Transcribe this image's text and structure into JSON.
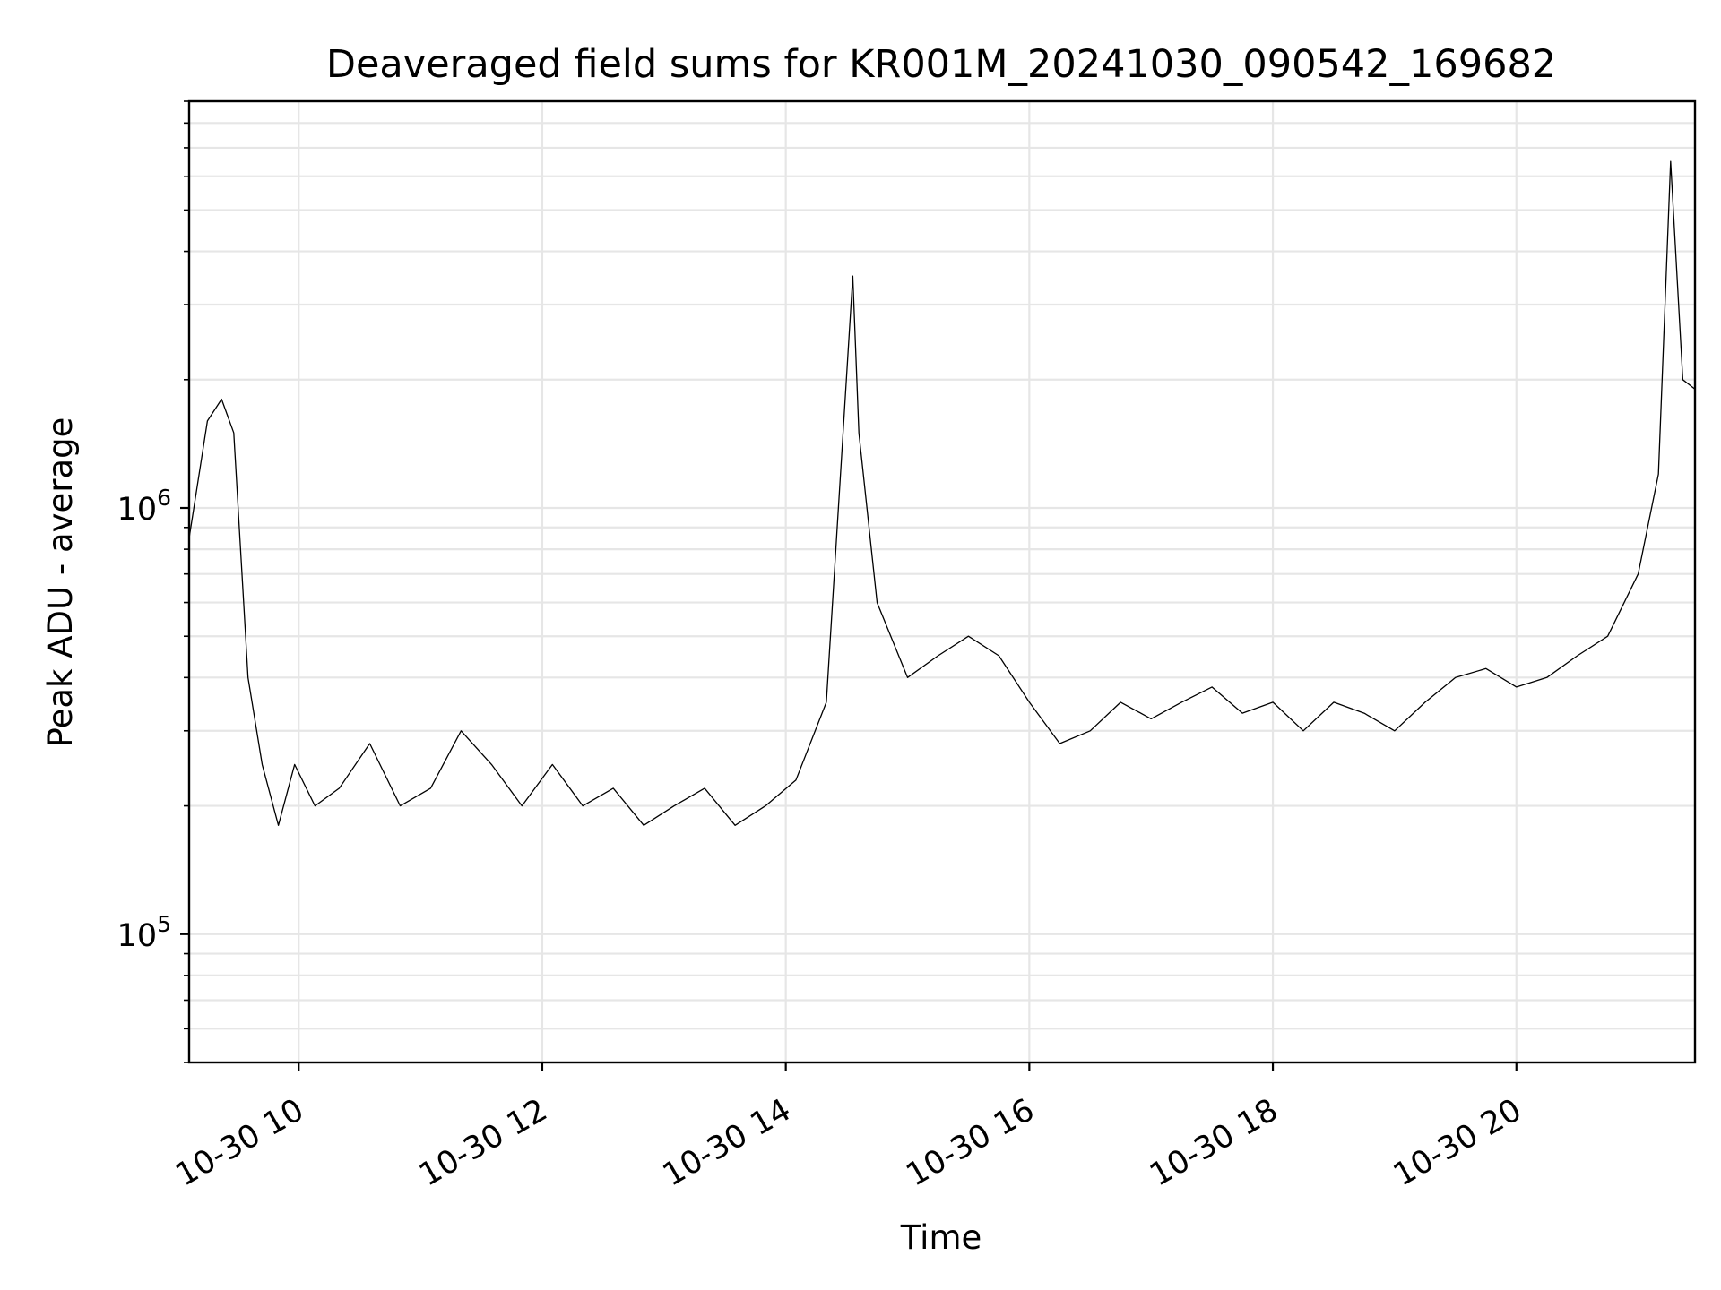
{
  "chart_data": {
    "type": "line",
    "title": "Deaveraged field sums for KR001M_20241030_090542_169682",
    "xlabel": "Time",
    "ylabel": "Peak ADU - average",
    "yscale": "log",
    "xlim": [
      "2024-10-30 09:06",
      "2024-10-30 21:28"
    ],
    "ylim": [
      50000,
      9000000
    ],
    "grid": true,
    "x_ticks": [
      "10-30 10",
      "10-30 12",
      "10-30 14",
      "10-30 16",
      "10-30 18",
      "10-30 20"
    ],
    "y_ticks": [
      {
        "base": "10",
        "exp": "5"
      },
      {
        "base": "10",
        "exp": "6"
      }
    ],
    "line_color": "#000000",
    "series": [
      {
        "x": [
          "2024-10-30 09:06",
          "2024-10-30 09:15",
          "2024-10-30 09:22",
          "2024-10-30 09:28",
          "2024-10-30 09:35",
          "2024-10-30 09:42",
          "2024-10-30 09:50",
          "2024-10-30 09:58",
          "2024-10-30 10:08",
          "2024-10-30 10:20",
          "2024-10-30 10:35",
          "2024-10-30 10:50",
          "2024-10-30 11:05",
          "2024-10-30 11:20",
          "2024-10-30 11:35",
          "2024-10-30 11:50",
          "2024-10-30 12:05",
          "2024-10-30 12:20",
          "2024-10-30 12:35",
          "2024-10-30 12:50",
          "2024-10-30 13:05",
          "2024-10-30 13:20",
          "2024-10-30 13:35",
          "2024-10-30 13:50",
          "2024-10-30 14:05",
          "2024-10-30 14:20",
          "2024-10-30 14:33",
          "2024-10-30 14:36",
          "2024-10-30 14:45",
          "2024-10-30 15:00",
          "2024-10-30 15:15",
          "2024-10-30 15:30",
          "2024-10-30 15:45",
          "2024-10-30 16:00",
          "2024-10-30 16:15",
          "2024-10-30 16:30",
          "2024-10-30 16:45",
          "2024-10-30 17:00",
          "2024-10-30 17:15",
          "2024-10-30 17:30",
          "2024-10-30 17:45",
          "2024-10-30 18:00",
          "2024-10-30 18:15",
          "2024-10-30 18:30",
          "2024-10-30 18:45",
          "2024-10-30 19:00",
          "2024-10-30 19:15",
          "2024-10-30 19:30",
          "2024-10-30 19:45",
          "2024-10-30 20:00",
          "2024-10-30 20:15",
          "2024-10-30 20:30",
          "2024-10-30 20:45",
          "2024-10-30 21:00",
          "2024-10-30 21:10",
          "2024-10-30 21:16",
          "2024-10-30 21:22",
          "2024-10-30 21:28"
        ],
        "y": [
          850000,
          1600000,
          1800000,
          1500000,
          400000,
          250000,
          180000,
          250000,
          200000,
          220000,
          280000,
          200000,
          220000,
          300000,
          250000,
          200000,
          250000,
          200000,
          220000,
          180000,
          200000,
          220000,
          180000,
          200000,
          230000,
          350000,
          3500000,
          1500000,
          600000,
          400000,
          450000,
          500000,
          450000,
          350000,
          280000,
          300000,
          350000,
          320000,
          350000,
          380000,
          330000,
          350000,
          300000,
          350000,
          330000,
          300000,
          350000,
          400000,
          420000,
          380000,
          400000,
          450000,
          500000,
          700000,
          1200000,
          6500000,
          2000000,
          1900000
        ]
      }
    ]
  }
}
